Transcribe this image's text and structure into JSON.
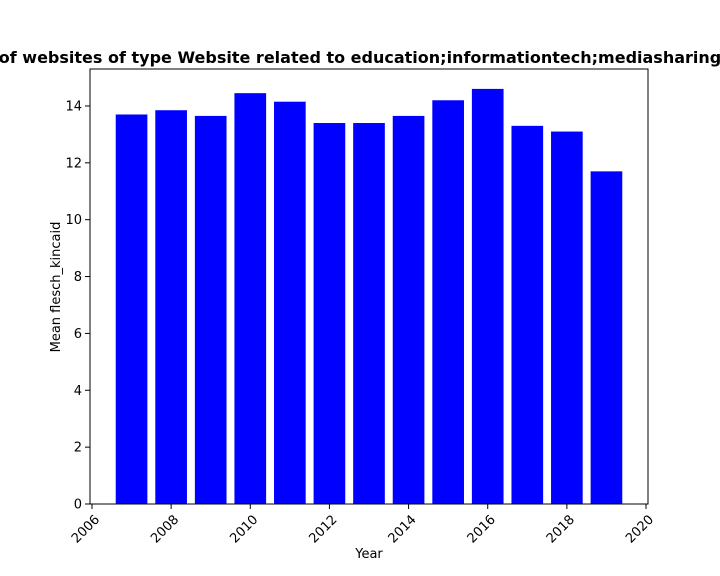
{
  "chart_data": {
    "type": "bar",
    "title": "Mean flesch_kincaid in privacy policies of websites of type Website related to education;informationtech;mediasharing Mean flesch_kincaid in privacy policies",
    "xlabel": "Year",
    "ylabel": "Mean flesch_kincaid",
    "x": [
      2007,
      2008,
      2009,
      2010,
      2011,
      2012,
      2013,
      2014,
      2015,
      2016,
      2017,
      2018,
      2019
    ],
    "values": [
      13.7,
      13.85,
      13.65,
      14.45,
      14.15,
      13.4,
      13.4,
      13.65,
      14.2,
      14.6,
      13.3,
      13.1,
      11.7
    ],
    "bar_color": "#0000ff",
    "xlim": [
      2005.95,
      2020.05
    ],
    "ylim": [
      0,
      15.3
    ],
    "xticks": [
      2006,
      2008,
      2010,
      2012,
      2014,
      2016,
      2018,
      2020
    ],
    "yticks": [
      0,
      2,
      4,
      6,
      8,
      10,
      12,
      14
    ],
    "grid": false,
    "legend": "none"
  }
}
